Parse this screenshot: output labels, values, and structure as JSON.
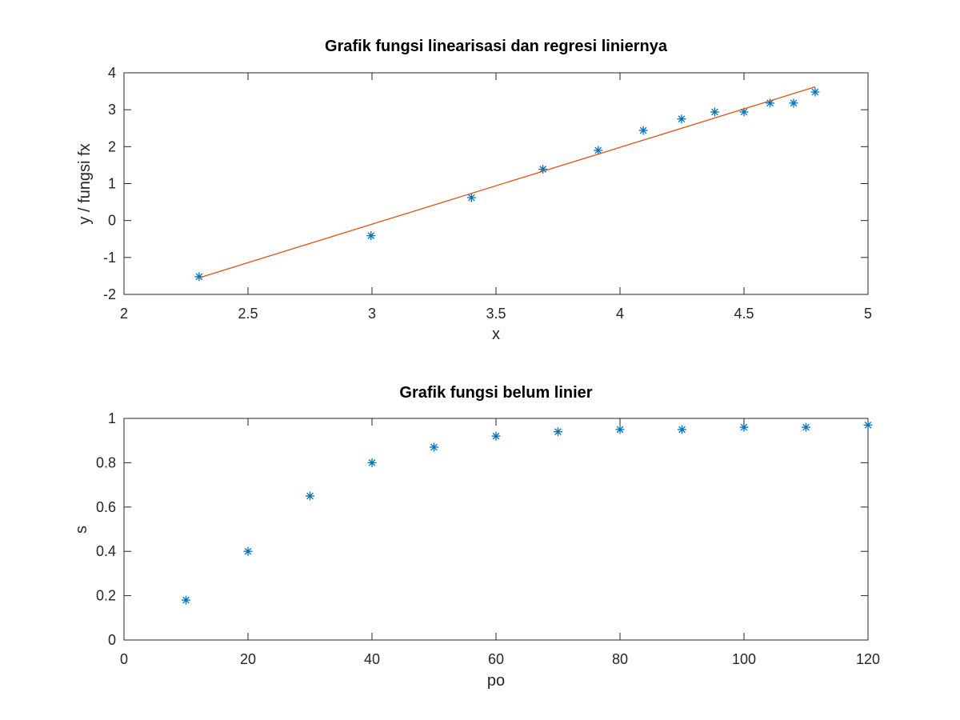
{
  "colors": {
    "marker": "#0072BD",
    "regression": "#D95319"
  },
  "chart_data": [
    {
      "type": "scatter",
      "title": "Grafik fungsi linearisasi dan regresi liniernya",
      "xlabel": "x",
      "ylabel": "y / fungsi fx",
      "xlim": [
        2,
        5
      ],
      "ylim": [
        -2,
        4
      ],
      "xticks": [
        "2",
        "2.5",
        "3",
        "3.5",
        "4",
        "4.5",
        "5"
      ],
      "yticks": [
        "-2",
        "-1",
        "0",
        "1",
        "2",
        "3",
        "4"
      ],
      "grid": false,
      "series": [
        {
          "kind": "scatter",
          "marker": "asterisk",
          "x": [
            2.303,
            2.996,
            3.401,
            3.689,
            3.912,
            4.094,
            4.248,
            4.382,
            4.5,
            4.605,
            4.7,
            4.787
          ],
          "y": [
            -1.52,
            -0.41,
            0.62,
            1.39,
            1.9,
            2.44,
            2.75,
            2.94,
            2.94,
            3.18,
            3.18,
            3.48
          ]
        },
        {
          "kind": "line",
          "x": [
            2.303,
            4.787
          ],
          "y": [
            -1.55,
            3.62
          ]
        }
      ]
    },
    {
      "type": "scatter",
      "title": "Grafik fungsi belum linier",
      "xlabel": "po",
      "ylabel": "s",
      "xlim": [
        0,
        120
      ],
      "ylim": [
        0,
        1
      ],
      "xticks": [
        "0",
        "20",
        "40",
        "60",
        "80",
        "100",
        "120"
      ],
      "yticks": [
        "0",
        "0.2",
        "0.4",
        "0.6",
        "0.8",
        "1"
      ],
      "grid": false,
      "series": [
        {
          "kind": "scatter",
          "marker": "asterisk",
          "x": [
            10,
            20,
            30,
            40,
            50,
            60,
            70,
            80,
            90,
            100,
            110,
            120
          ],
          "y": [
            0.18,
            0.4,
            0.65,
            0.8,
            0.87,
            0.92,
            0.94,
            0.95,
            0.95,
            0.96,
            0.96,
            0.97
          ]
        }
      ]
    }
  ]
}
